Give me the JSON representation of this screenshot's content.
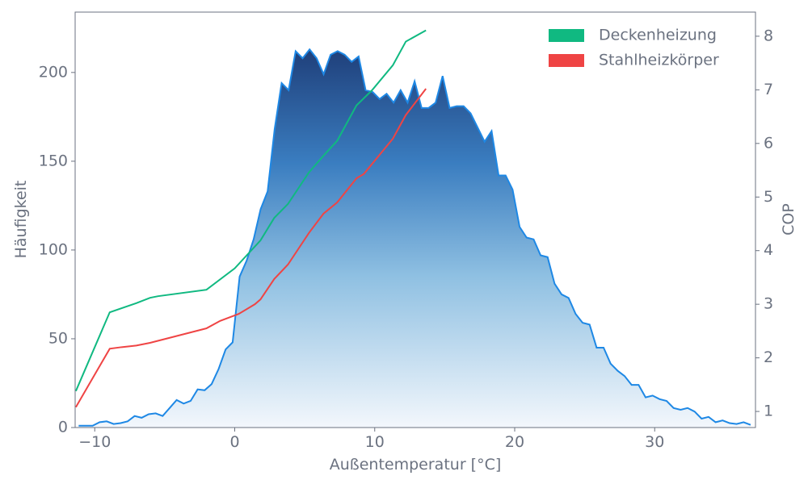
{
  "chart_data": {
    "type": "area",
    "xlabel": "Außentemperatur [°C]",
    "ylabel": "Häufigkeit",
    "y2label": "COP",
    "color": "#1e88e5",
    "x": [
      -11.15,
      -10.65,
      -10.15,
      -9.65,
      -9.15,
      -8.65,
      -8.15,
      -7.65,
      -7.15,
      -6.65,
      -6.15,
      -5.65,
      -5.15,
      -4.65,
      -4.15,
      -3.65,
      -3.15,
      -2.65,
      -2.15,
      -1.65,
      -1.15,
      -0.65,
      -0.15,
      0.35,
      0.85,
      1.35,
      1.85,
      2.35,
      2.85,
      3.35,
      3.85,
      4.35,
      4.85,
      5.35,
      5.85,
      6.35,
      6.85,
      7.35,
      7.85,
      8.35,
      8.85,
      9.35,
      9.85,
      10.35,
      10.85,
      11.35,
      11.85,
      12.35,
      12.85,
      13.35,
      13.85,
      14.35,
      14.85,
      15.35,
      15.85,
      16.35,
      16.85,
      17.35,
      17.85,
      18.35,
      18.85,
      19.35,
      19.85,
      20.35,
      20.85,
      21.35,
      21.85,
      22.35,
      22.85,
      23.35,
      23.85,
      24.35,
      24.85,
      25.35,
      25.85,
      26.35,
      26.85,
      27.35,
      27.85,
      28.35,
      28.85,
      29.35,
      29.85,
      30.35,
      30.85,
      31.35,
      31.85,
      32.35,
      32.85,
      33.35,
      33.85,
      34.35,
      34.85,
      35.35,
      35.85,
      36.35,
      36.85
    ],
    "values": [
      1,
      1,
      1,
      3,
      3.5,
      2,
      2.5,
      3.5,
      6.5,
      5.5,
      7.5,
      8,
      6.5,
      11,
      15.5,
      13.5,
      15,
      21.5,
      21,
      24.5,
      33,
      44,
      48,
      85,
      94,
      106,
      123,
      133,
      168,
      194,
      190,
      212,
      208,
      213,
      208,
      199,
      210,
      212,
      210,
      206,
      209,
      190,
      189,
      185,
      188,
      183,
      190,
      183,
      195,
      180,
      180,
      183,
      198,
      180,
      181,
      181,
      177,
      169,
      161,
      167,
      142,
      142,
      134,
      113,
      107,
      106,
      97,
      96,
      81,
      75,
      73,
      64,
      59,
      58,
      45,
      45,
      36,
      32,
      29,
      24,
      24,
      17,
      18,
      16,
      15,
      11,
      10,
      11,
      9,
      5,
      6,
      3,
      4,
      2.5,
      2,
      3,
      1.5
    ],
    "series": [
      {
        "name": "Deckenheizung",
        "color": "#10b981",
        "axis": "y2",
        "x": [
          -11.35,
          -8.93,
          -7.03,
          -6.05,
          -5.48,
          -2.02,
          0,
          1.84,
          2.82,
          3.8,
          5.3,
          6.34,
          7.32,
          8.7,
          9.8,
          11.3,
          12.22,
          13.66
        ],
        "values": [
          1.38,
          2.85,
          3.02,
          3.12,
          3.15,
          3.27,
          3.67,
          4.19,
          4.61,
          4.87,
          5.46,
          5.77,
          6.05,
          6.71,
          6.99,
          7.46,
          7.9,
          8.11
        ]
      },
      {
        "name": "Stahlheizkörper",
        "color": "#ef4444",
        "axis": "y2",
        "x": [
          -11.35,
          -8.93,
          -8.07,
          -7.03,
          -6.05,
          -2.02,
          -1.04,
          0.29,
          1.44,
          1.84,
          2.82,
          3.8,
          5.3,
          6.34,
          7.32,
          8.7,
          9.22,
          11.3,
          12.22,
          13.66
        ],
        "values": [
          1.08,
          2.17,
          2.2,
          2.23,
          2.28,
          2.55,
          2.69,
          2.82,
          3,
          3.09,
          3.47,
          3.74,
          4.33,
          4.69,
          4.9,
          5.35,
          5.43,
          6.09,
          6.53,
          7.02
        ]
      }
    ],
    "xlim": [
      -11.4,
      37.2
    ],
    "xticks": [
      {
        "value": -10,
        "label": "−10"
      },
      0,
      10,
      20,
      30
    ],
    "ylim": [
      0,
      234
    ],
    "yticks": [
      0,
      50,
      100,
      150,
      200
    ],
    "y2lim": [
      0.7,
      8.45
    ],
    "y2ticks": [
      1,
      2,
      3,
      4,
      5,
      6,
      7,
      8
    ],
    "grid": false,
    "legend": "upper right"
  }
}
